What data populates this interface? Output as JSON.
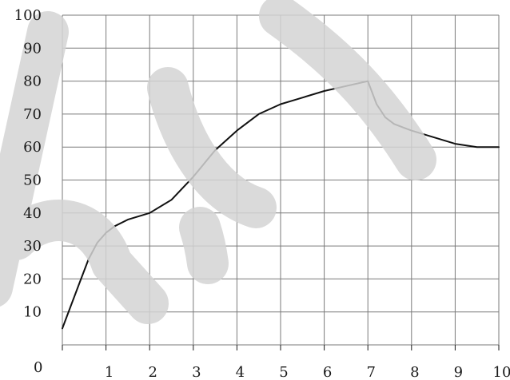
{
  "chart_data": {
    "type": "line",
    "title": "",
    "xlabel": "",
    "ylabel": "",
    "xlim": [
      0,
      10
    ],
    "ylim": [
      0,
      100
    ],
    "grid": true,
    "x_ticks": [
      0,
      1,
      2,
      3,
      4,
      5,
      6,
      7,
      8,
      9,
      10
    ],
    "y_ticks": [
      0,
      10,
      20,
      30,
      40,
      50,
      60,
      70,
      80,
      90,
      100
    ],
    "series": [
      {
        "color": "#111111",
        "x": [
          0,
          0.2,
          0.4,
          0.6,
          0.8,
          1.0,
          1.2,
          1.5,
          2.0,
          2.5,
          3.0,
          3.5,
          4.0,
          4.5,
          5.0,
          5.5,
          6.0,
          6.5,
          7.0,
          7.2,
          7.4,
          7.6,
          8.0,
          8.5,
          9.0,
          9.5,
          10.0
        ],
        "y": [
          5,
          12,
          19,
          26,
          31,
          34,
          36,
          38,
          40,
          44,
          51,
          59,
          65,
          70,
          73,
          75,
          77,
          78.5,
          80,
          73,
          69,
          67,
          65,
          63,
          61,
          60,
          60
        ]
      }
    ]
  },
  "watermark": {
    "color": "#d4d4d4"
  }
}
